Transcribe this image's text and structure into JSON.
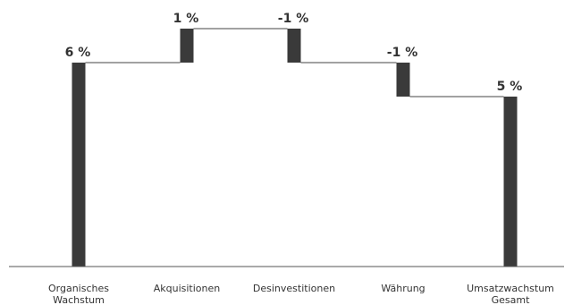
{
  "chart_data": {
    "type": "bar",
    "subtype": "waterfall",
    "categories": [
      [
        "Organisches",
        "Wachstum"
      ],
      [
        "Akquisitionen"
      ],
      [
        "Desinvestitionen"
      ],
      [
        "Währung"
      ],
      [
        "Umsatzwachstum",
        "Gesamt"
      ]
    ],
    "values": [
      6,
      1,
      -1,
      -1,
      5
    ],
    "value_labels": [
      "6 %",
      "1 %",
      "-1 %",
      "-1 %",
      "5 %"
    ],
    "bar_kinds": [
      "total",
      "delta",
      "delta",
      "delta",
      "total"
    ],
    "ylim": [
      0,
      7.5
    ],
    "grid": false,
    "legend": "none",
    "title": "",
    "xlabel": "",
    "ylabel": ""
  },
  "colors": {
    "bar": "#3a3a3a",
    "connector": "#444444",
    "axis": "#555555",
    "text": "#333333"
  }
}
